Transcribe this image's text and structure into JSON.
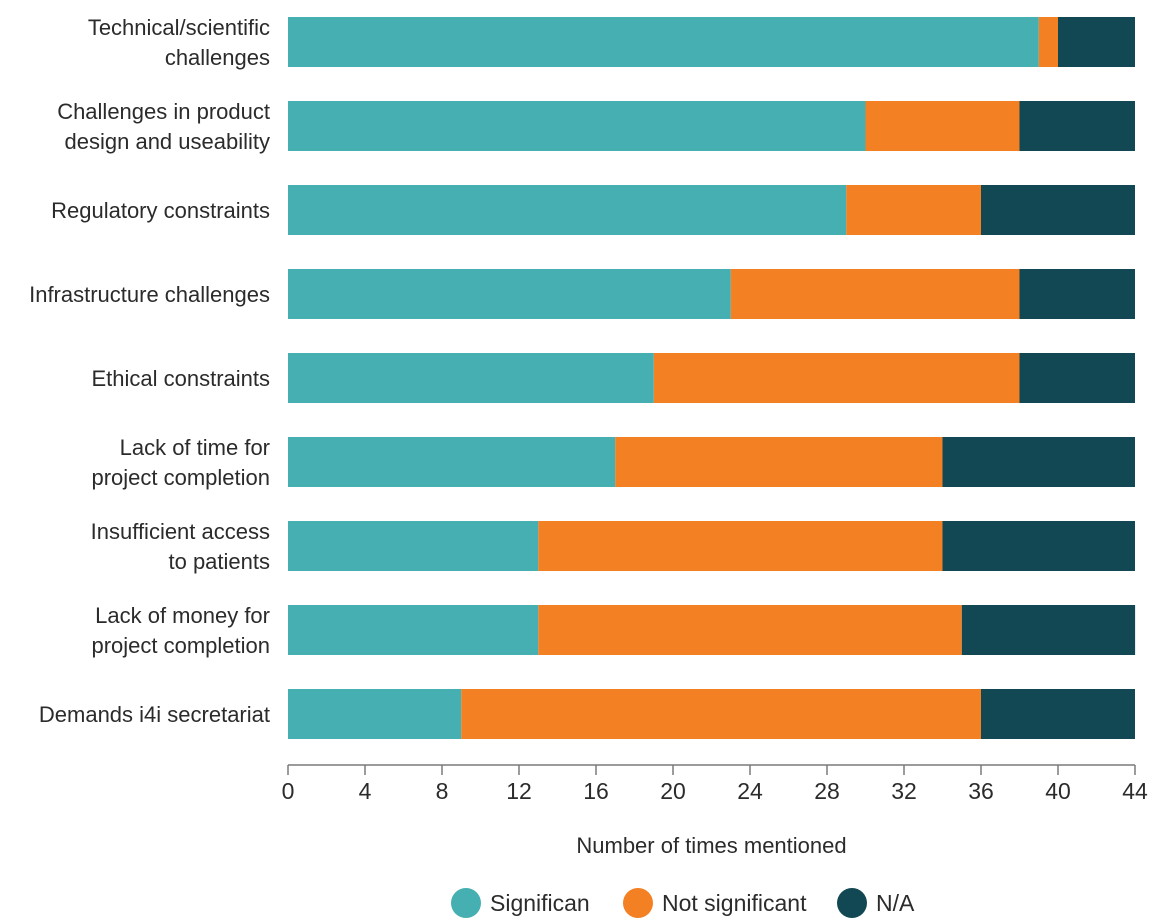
{
  "chart_data": {
    "type": "bar",
    "orientation": "horizontal",
    "stacked": true,
    "categories": [
      [
        "Technical/scientific",
        "challenges"
      ],
      [
        "Challenges in product",
        "design and useability"
      ],
      [
        "Regulatory constraints"
      ],
      [
        "Infrastructure challenges"
      ],
      [
        "Ethical constraints"
      ],
      [
        "Lack of time for",
        "project completion"
      ],
      [
        "Insufficient access",
        "to patients"
      ],
      [
        "Lack of money for",
        "project completion"
      ],
      [
        "Demands i4i secretariat"
      ]
    ],
    "series": [
      {
        "name": "Significan",
        "color": "#45afb1",
        "values": [
          39,
          30,
          29,
          23,
          19,
          17,
          13,
          13,
          9
        ]
      },
      {
        "name": "Not significant",
        "color": "#f38023",
        "values": [
          1,
          8,
          7,
          15,
          19,
          17,
          21,
          22,
          27
        ]
      },
      {
        "name": "N/A",
        "color": "#124853",
        "values": [
          4,
          6,
          8,
          6,
          6,
          10,
          10,
          9,
          8
        ]
      }
    ],
    "xlabel": "Number of times mentioned",
    "ylabel": "",
    "title": "",
    "xlim": [
      0,
      44
    ],
    "xticks": [
      0,
      4,
      8,
      12,
      16,
      20,
      24,
      28,
      32,
      36,
      40,
      44
    ],
    "grid": false,
    "legend": "bottom"
  }
}
